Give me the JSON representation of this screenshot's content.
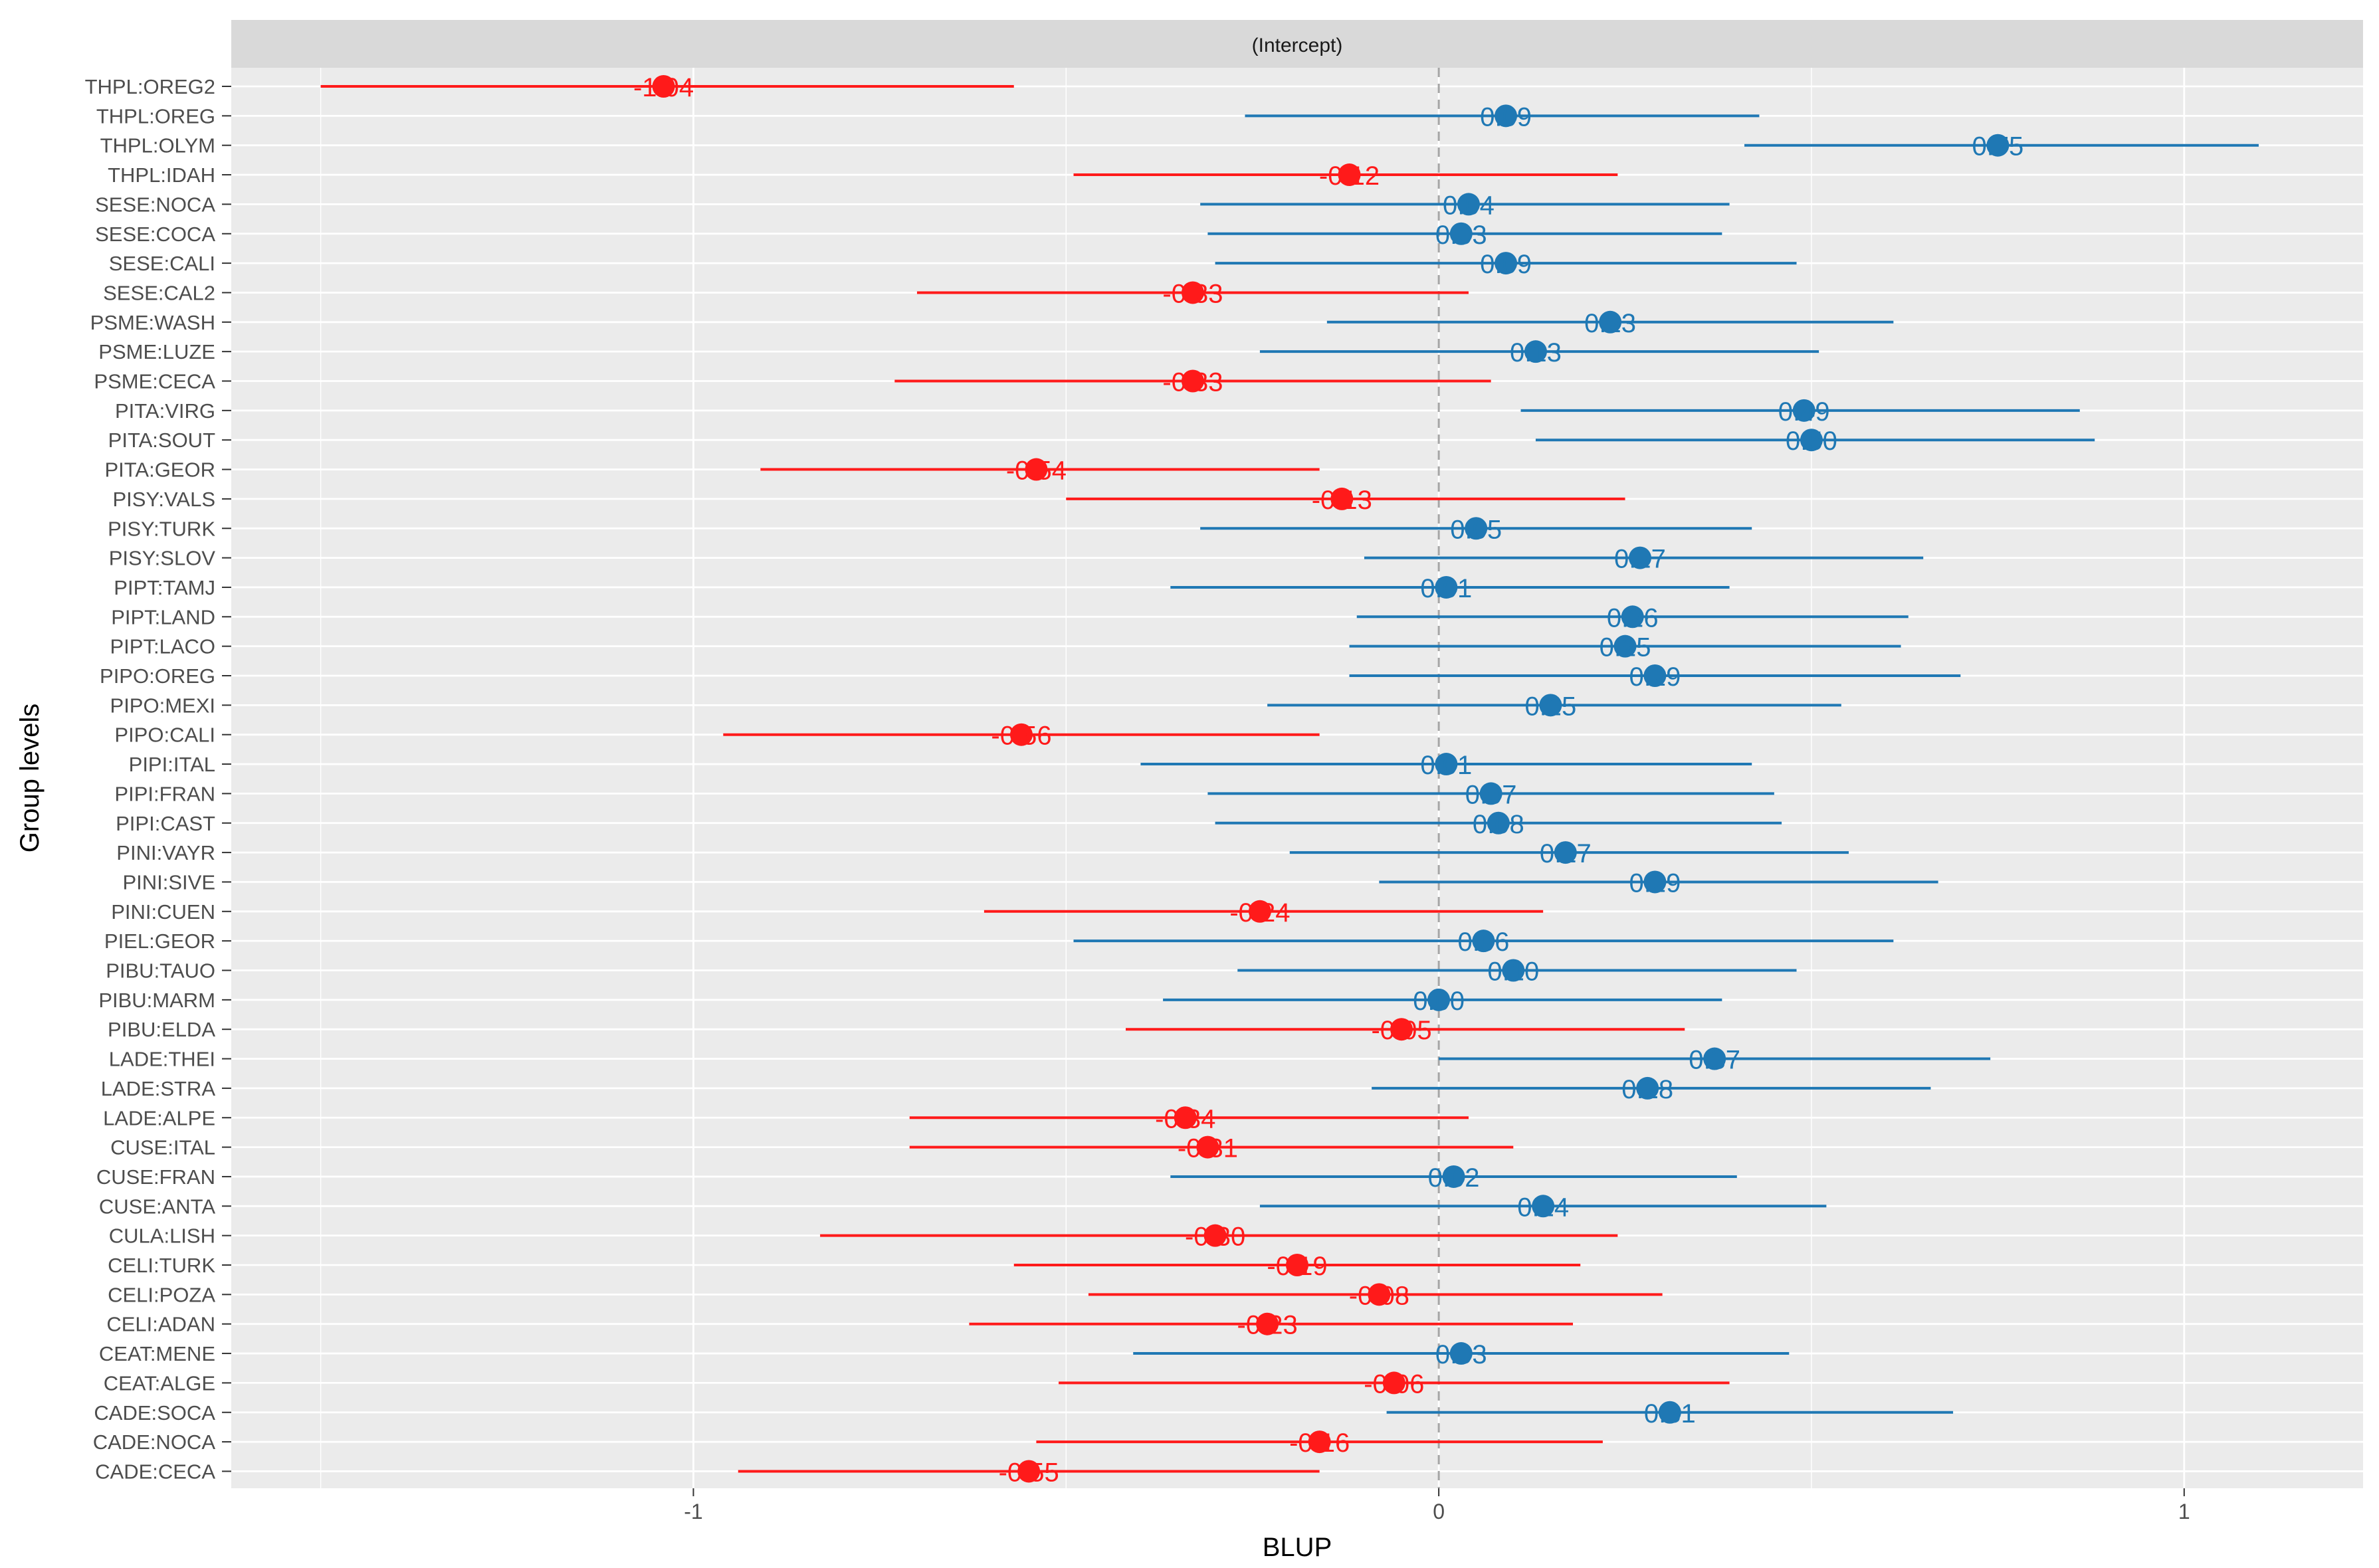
{
  "chart_data": {
    "type": "dot-interval",
    "facet_title": "(Intercept)",
    "xlabel": "BLUP",
    "ylabel": "Group levels",
    "xlim": [
      -1.62,
      1.24
    ],
    "x_ticks": [
      -1,
      0,
      1
    ],
    "x_tick_labels": [
      "-1",
      "0",
      "1"
    ],
    "reference_line": 0,
    "colors": {
      "positive": "#1f78b4",
      "negative": "#ff1a1a",
      "panel": "#ebebeb",
      "grid": "#ffffff",
      "strip": "#d9d9d9",
      "ref": "#a6a6a6"
    },
    "points": [
      {
        "label": "THPL:OREG2",
        "value": -1.04,
        "lo": -1.5,
        "hi": -0.57,
        "value_label": "-1.04"
      },
      {
        "label": "THPL:OREG",
        "value": 0.09,
        "lo": -0.26,
        "hi": 0.43,
        "value_label": "0.09"
      },
      {
        "label": "THPL:OLYM",
        "value": 0.75,
        "lo": 0.41,
        "hi": 1.1,
        "value_label": "0.75"
      },
      {
        "label": "THPL:IDAH",
        "value": -0.12,
        "lo": -0.49,
        "hi": 0.24,
        "value_label": "-0.12"
      },
      {
        "label": "SESE:NOCA",
        "value": 0.04,
        "lo": -0.32,
        "hi": 0.39,
        "value_label": "0.04"
      },
      {
        "label": "SESE:COCA",
        "value": 0.03,
        "lo": -0.31,
        "hi": 0.38,
        "value_label": "0.03"
      },
      {
        "label": "SESE:CALI",
        "value": 0.09,
        "lo": -0.3,
        "hi": 0.48,
        "value_label": "0.09"
      },
      {
        "label": "SESE:CAL2",
        "value": -0.33,
        "lo": -0.7,
        "hi": 0.04,
        "value_label": "-0.33"
      },
      {
        "label": "PSME:WASH",
        "value": 0.23,
        "lo": -0.15,
        "hi": 0.61,
        "value_label": "0.23"
      },
      {
        "label": "PSME:LUZE",
        "value": 0.13,
        "lo": -0.24,
        "hi": 0.51,
        "value_label": "0.13"
      },
      {
        "label": "PSME:CECA",
        "value": -0.33,
        "lo": -0.73,
        "hi": 0.07,
        "value_label": "-0.33"
      },
      {
        "label": "PITA:VIRG",
        "value": 0.49,
        "lo": 0.11,
        "hi": 0.86,
        "value_label": "0.49"
      },
      {
        "label": "PITA:SOUT",
        "value": 0.5,
        "lo": 0.13,
        "hi": 0.88,
        "value_label": "0.50"
      },
      {
        "label": "PITA:GEOR",
        "value": -0.54,
        "lo": -0.91,
        "hi": -0.16,
        "value_label": "-0.54"
      },
      {
        "label": "PISY:VALS",
        "value": -0.13,
        "lo": -0.5,
        "hi": 0.25,
        "value_label": "-0.13"
      },
      {
        "label": "PISY:TURK",
        "value": 0.05,
        "lo": -0.32,
        "hi": 0.42,
        "value_label": "0.05"
      },
      {
        "label": "PISY:SLOV",
        "value": 0.27,
        "lo": -0.1,
        "hi": 0.65,
        "value_label": "0.27"
      },
      {
        "label": "PIPT:TAMJ",
        "value": 0.01,
        "lo": -0.36,
        "hi": 0.39,
        "value_label": "0.01"
      },
      {
        "label": "PIPT:LAND",
        "value": 0.26,
        "lo": -0.11,
        "hi": 0.63,
        "value_label": "0.26"
      },
      {
        "label": "PIPT:LACO",
        "value": 0.25,
        "lo": -0.12,
        "hi": 0.62,
        "value_label": "0.25"
      },
      {
        "label": "PIPO:OREG",
        "value": 0.29,
        "lo": -0.12,
        "hi": 0.7,
        "value_label": "0.29"
      },
      {
        "label": "PIPO:MEXI",
        "value": 0.15,
        "lo": -0.23,
        "hi": 0.54,
        "value_label": "0.15"
      },
      {
        "label": "PIPO:CALI",
        "value": -0.56,
        "lo": -0.96,
        "hi": -0.16,
        "value_label": "-0.56"
      },
      {
        "label": "PIPI:ITAL",
        "value": 0.01,
        "lo": -0.4,
        "hi": 0.42,
        "value_label": "0.01"
      },
      {
        "label": "PIPI:FRAN",
        "value": 0.07,
        "lo": -0.31,
        "hi": 0.45,
        "value_label": "0.07"
      },
      {
        "label": "PIPI:CAST",
        "value": 0.08,
        "lo": -0.3,
        "hi": 0.46,
        "value_label": "0.08"
      },
      {
        "label": "PINI:VAYR",
        "value": 0.17,
        "lo": -0.2,
        "hi": 0.55,
        "value_label": "0.17"
      },
      {
        "label": "PINI:SIVE",
        "value": 0.29,
        "lo": -0.08,
        "hi": 0.67,
        "value_label": "0.29"
      },
      {
        "label": "PINI:CUEN",
        "value": -0.24,
        "lo": -0.61,
        "hi": 0.14,
        "value_label": "-0.24"
      },
      {
        "label": "PIEL:GEOR",
        "value": 0.06,
        "lo": -0.49,
        "hi": 0.61,
        "value_label": "0.06"
      },
      {
        "label": "PIBU:TAUO",
        "value": 0.1,
        "lo": -0.27,
        "hi": 0.48,
        "value_label": "0.10"
      },
      {
        "label": "PIBU:MARM",
        "value": 0.0,
        "lo": -0.37,
        "hi": 0.38,
        "value_label": "0.00"
      },
      {
        "label": "PIBU:ELDA",
        "value": -0.05,
        "lo": -0.42,
        "hi": 0.33,
        "value_label": "-0.05"
      },
      {
        "label": "LADE:THEI",
        "value": 0.37,
        "lo": 0.0,
        "hi": 0.74,
        "value_label": "0.37"
      },
      {
        "label": "LADE:STRA",
        "value": 0.28,
        "lo": -0.09,
        "hi": 0.66,
        "value_label": "0.28"
      },
      {
        "label": "LADE:ALPE",
        "value": -0.34,
        "lo": -0.71,
        "hi": 0.04,
        "value_label": "-0.34"
      },
      {
        "label": "CUSE:ITAL",
        "value": -0.31,
        "lo": -0.71,
        "hi": 0.1,
        "value_label": "-0.31"
      },
      {
        "label": "CUSE:FRAN",
        "value": 0.02,
        "lo": -0.36,
        "hi": 0.4,
        "value_label": "0.02"
      },
      {
        "label": "CUSE:ANTA",
        "value": 0.14,
        "lo": -0.24,
        "hi": 0.52,
        "value_label": "0.14"
      },
      {
        "label": "CULA:LISH",
        "value": -0.3,
        "lo": -0.83,
        "hi": 0.24,
        "value_label": "-0.30"
      },
      {
        "label": "CELI:TURK",
        "value": -0.19,
        "lo": -0.57,
        "hi": 0.19,
        "value_label": "-0.19"
      },
      {
        "label": "CELI:POZA",
        "value": -0.08,
        "lo": -0.47,
        "hi": 0.3,
        "value_label": "-0.08"
      },
      {
        "label": "CELI:ADAN",
        "value": -0.23,
        "lo": -0.63,
        "hi": 0.18,
        "value_label": "-0.23"
      },
      {
        "label": "CEAT:MENE",
        "value": 0.03,
        "lo": -0.41,
        "hi": 0.47,
        "value_label": "0.03"
      },
      {
        "label": "CEAT:ALGE",
        "value": -0.06,
        "lo": -0.51,
        "hi": 0.39,
        "value_label": "-0.06"
      },
      {
        "label": "CADE:SOCA",
        "value": 0.31,
        "lo": -0.07,
        "hi": 0.69,
        "value_label": "0.31"
      },
      {
        "label": "CADE:NOCA",
        "value": -0.16,
        "lo": -0.54,
        "hi": 0.22,
        "value_label": "-0.16"
      },
      {
        "label": "CADE:CECA",
        "value": -0.55,
        "lo": -0.94,
        "hi": -0.16,
        "value_label": "-0.55"
      }
    ]
  }
}
